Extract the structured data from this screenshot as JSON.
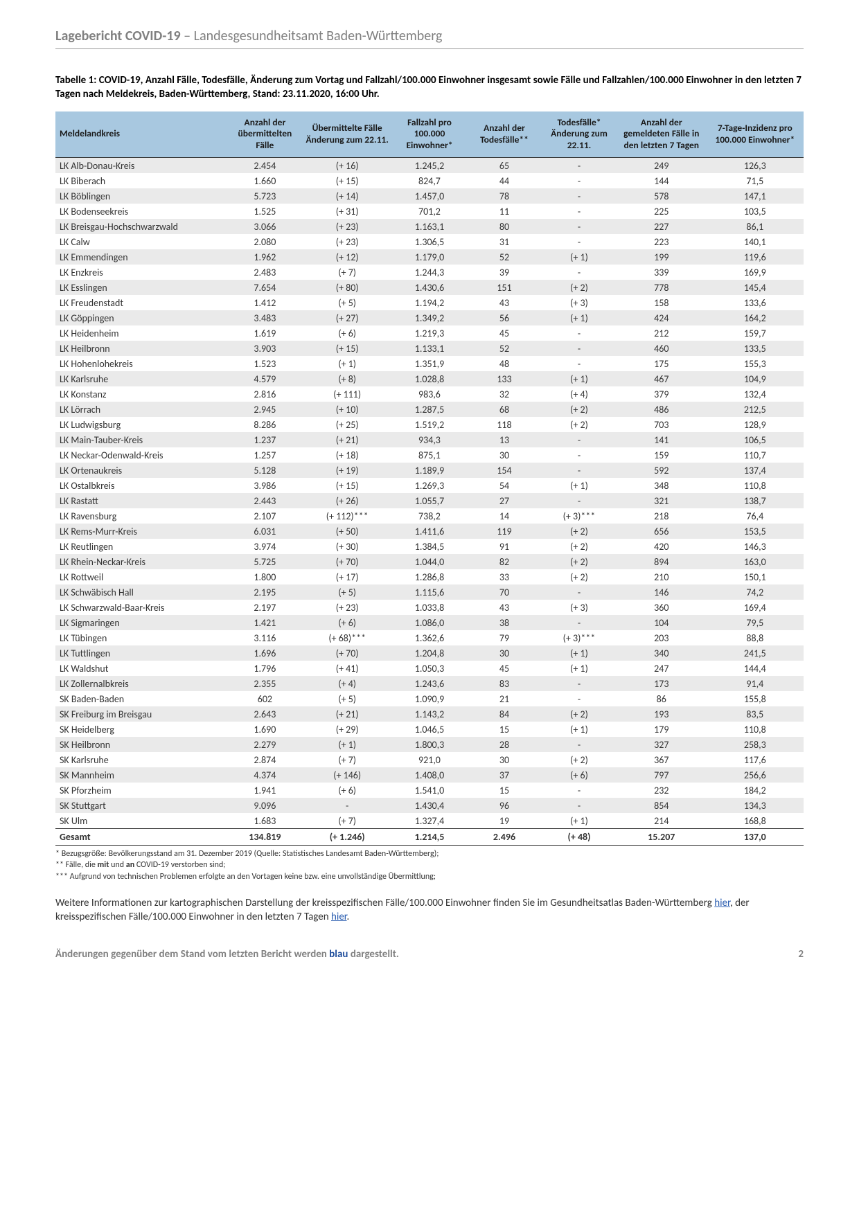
{
  "header": {
    "bold": "Lagebericht COVID-19",
    "sep": " – ",
    "rest": "Landesgesundheitsamt Baden-Württemberg"
  },
  "caption": "Tabelle 1: COVID-19, Anzahl Fälle, Todesfälle, Änderung zum Vortag und Fallzahl/100.000 Einwohner insgesamt sowie Fälle und Fallzahlen/100.000 Einwohner in den letzten 7 Tagen nach Meldekreis, Baden-Württemberg, Stand: 23.11.2020, 16:00 Uhr.",
  "cols": {
    "kreis": "Meldelandkreis",
    "faelle": "Anzahl der übermittelten Fälle",
    "aend": "Übermittelte Fälle Änderung zum 22.11.",
    "fz100k": "Fallzahl pro 100.000 Einwohner*",
    "tod": "Anzahl der Todesfälle**",
    "todaend": "Todesfälle* Änderung zum 22.11.",
    "d7": "Anzahl der gemeldeten Fälle in den letzten 7 Tagen",
    "inz": "7-Tage-Inzidenz pro 100.000 Einwohner*"
  },
  "table": {
    "type": "table",
    "header_bg": "#a8c8e0",
    "row_even_bg": "#eaeaea",
    "row_odd_bg": "#ffffff",
    "border_color": "#333333",
    "font_size": 14,
    "columns": [
      "kreis",
      "faelle",
      "aend",
      "fz100k",
      "tod",
      "todaend",
      "d7",
      "inz"
    ],
    "col_align": [
      "left",
      "center",
      "center",
      "center",
      "center",
      "center",
      "center",
      "center"
    ],
    "col_widths_pct": [
      23,
      10,
      12,
      10,
      10,
      10,
      12,
      13
    ]
  },
  "rows": [
    {
      "kreis": "LK Alb-Donau-Kreis",
      "faelle": "2.454",
      "aend": "(+ 16)",
      "fz100k": "1.245,2",
      "tod": "65",
      "todaend": "-",
      "d7": "249",
      "inz": "126,3"
    },
    {
      "kreis": "LK Biberach",
      "faelle": "1.660",
      "aend": "(+ 15)",
      "fz100k": "824,7",
      "tod": "44",
      "todaend": "-",
      "d7": "144",
      "inz": "71,5"
    },
    {
      "kreis": "LK Böblingen",
      "faelle": "5.723",
      "aend": "(+ 14)",
      "fz100k": "1.457,0",
      "tod": "78",
      "todaend": "-",
      "d7": "578",
      "inz": "147,1"
    },
    {
      "kreis": "LK Bodenseekreis",
      "faelle": "1.525",
      "aend": "(+ 31)",
      "fz100k": "701,2",
      "tod": "11",
      "todaend": "-",
      "d7": "225",
      "inz": "103,5"
    },
    {
      "kreis": "LK Breisgau-Hochschwarzwald",
      "faelle": "3.066",
      "aend": "(+ 23)",
      "fz100k": "1.163,1",
      "tod": "80",
      "todaend": "-",
      "d7": "227",
      "inz": "86,1"
    },
    {
      "kreis": "LK Calw",
      "faelle": "2.080",
      "aend": "(+ 23)",
      "fz100k": "1.306,5",
      "tod": "31",
      "todaend": "-",
      "d7": "223",
      "inz": "140,1"
    },
    {
      "kreis": "LK Emmendingen",
      "faelle": "1.962",
      "aend": "(+ 12)",
      "fz100k": "1.179,0",
      "tod": "52",
      "todaend": "(+ 1)",
      "d7": "199",
      "inz": "119,6"
    },
    {
      "kreis": "LK Enzkreis",
      "faelle": "2.483",
      "aend": "(+ 7)",
      "fz100k": "1.244,3",
      "tod": "39",
      "todaend": "-",
      "d7": "339",
      "inz": "169,9"
    },
    {
      "kreis": "LK Esslingen",
      "faelle": "7.654",
      "aend": "(+ 80)",
      "fz100k": "1.430,6",
      "tod": "151",
      "todaend": "(+ 2)",
      "d7": "778",
      "inz": "145,4"
    },
    {
      "kreis": "LK Freudenstadt",
      "faelle": "1.412",
      "aend": "(+ 5)",
      "fz100k": "1.194,2",
      "tod": "43",
      "todaend": "(+ 3)",
      "d7": "158",
      "inz": "133,6"
    },
    {
      "kreis": "LK Göppingen",
      "faelle": "3.483",
      "aend": "(+ 27)",
      "fz100k": "1.349,2",
      "tod": "56",
      "todaend": "(+ 1)",
      "d7": "424",
      "inz": "164,2"
    },
    {
      "kreis": "LK Heidenheim",
      "faelle": "1.619",
      "aend": "(+ 6)",
      "fz100k": "1.219,3",
      "tod": "45",
      "todaend": "-",
      "d7": "212",
      "inz": "159,7"
    },
    {
      "kreis": "LK Heilbronn",
      "faelle": "3.903",
      "aend": "(+ 15)",
      "fz100k": "1.133,1",
      "tod": "52",
      "todaend": "-",
      "d7": "460",
      "inz": "133,5"
    },
    {
      "kreis": "LK Hohenlohekreis",
      "faelle": "1.523",
      "aend": "(+ 1)",
      "fz100k": "1.351,9",
      "tod": "48",
      "todaend": "-",
      "d7": "175",
      "inz": "155,3"
    },
    {
      "kreis": "LK Karlsruhe",
      "faelle": "4.579",
      "aend": "(+ 8)",
      "fz100k": "1.028,8",
      "tod": "133",
      "todaend": "(+ 1)",
      "d7": "467",
      "inz": "104,9"
    },
    {
      "kreis": "LK Konstanz",
      "faelle": "2.816",
      "aend": "(+ 111)",
      "fz100k": "983,6",
      "tod": "32",
      "todaend": "(+ 4)",
      "d7": "379",
      "inz": "132,4"
    },
    {
      "kreis": "LK Lörrach",
      "faelle": "2.945",
      "aend": "(+ 10)",
      "fz100k": "1.287,5",
      "tod": "68",
      "todaend": "(+ 2)",
      "d7": "486",
      "inz": "212,5"
    },
    {
      "kreis": "LK Ludwigsburg",
      "faelle": "8.286",
      "aend": "(+ 25)",
      "fz100k": "1.519,2",
      "tod": "118",
      "todaend": "(+ 2)",
      "d7": "703",
      "inz": "128,9"
    },
    {
      "kreis": "LK Main-Tauber-Kreis",
      "faelle": "1.237",
      "aend": "(+ 21)",
      "fz100k": "934,3",
      "tod": "13",
      "todaend": "-",
      "d7": "141",
      "inz": "106,5"
    },
    {
      "kreis": "LK Neckar-Odenwald-Kreis",
      "faelle": "1.257",
      "aend": "(+ 18)",
      "fz100k": "875,1",
      "tod": "30",
      "todaend": "-",
      "d7": "159",
      "inz": "110,7"
    },
    {
      "kreis": "LK Ortenaukreis",
      "faelle": "5.128",
      "aend": "(+ 19)",
      "fz100k": "1.189,9",
      "tod": "154",
      "todaend": "-",
      "d7": "592",
      "inz": "137,4"
    },
    {
      "kreis": "LK Ostalbkreis",
      "faelle": "3.986",
      "aend": "(+ 15)",
      "fz100k": "1.269,3",
      "tod": "54",
      "todaend": "(+ 1)",
      "d7": "348",
      "inz": "110,8"
    },
    {
      "kreis": "LK Rastatt",
      "faelle": "2.443",
      "aend": "(+ 26)",
      "fz100k": "1.055,7",
      "tod": "27",
      "todaend": "-",
      "d7": "321",
      "inz": "138,7"
    },
    {
      "kreis": "LK Ravensburg",
      "faelle": "2.107",
      "aend": "(+ 112)***",
      "fz100k": "738,2",
      "tod": "14",
      "todaend": "(+ 3)***",
      "d7": "218",
      "inz": "76,4"
    },
    {
      "kreis": "LK Rems-Murr-Kreis",
      "faelle": "6.031",
      "aend": "(+ 50)",
      "fz100k": "1.411,6",
      "tod": "119",
      "todaend": "(+ 2)",
      "d7": "656",
      "inz": "153,5"
    },
    {
      "kreis": "LK Reutlingen",
      "faelle": "3.974",
      "aend": "(+ 30)",
      "fz100k": "1.384,5",
      "tod": "91",
      "todaend": "(+ 2)",
      "d7": "420",
      "inz": "146,3"
    },
    {
      "kreis": "LK Rhein-Neckar-Kreis",
      "faelle": "5.725",
      "aend": "(+ 70)",
      "fz100k": "1.044,0",
      "tod": "82",
      "todaend": "(+ 2)",
      "d7": "894",
      "inz": "163,0"
    },
    {
      "kreis": "LK Rottweil",
      "faelle": "1.800",
      "aend": "(+ 17)",
      "fz100k": "1.286,8",
      "tod": "33",
      "todaend": "(+ 2)",
      "d7": "210",
      "inz": "150,1"
    },
    {
      "kreis": "LK Schwäbisch Hall",
      "faelle": "2.195",
      "aend": "(+ 5)",
      "fz100k": "1.115,6",
      "tod": "70",
      "todaend": "-",
      "d7": "146",
      "inz": "74,2"
    },
    {
      "kreis": "LK Schwarzwald-Baar-Kreis",
      "faelle": "2.197",
      "aend": "(+ 23)",
      "fz100k": "1.033,8",
      "tod": "43",
      "todaend": "(+ 3)",
      "d7": "360",
      "inz": "169,4"
    },
    {
      "kreis": "LK Sigmaringen",
      "faelle": "1.421",
      "aend": "(+ 6)",
      "fz100k": "1.086,0",
      "tod": "38",
      "todaend": "-",
      "d7": "104",
      "inz": "79,5"
    },
    {
      "kreis": "LK Tübingen",
      "faelle": "3.116",
      "aend": "(+ 68)***",
      "fz100k": "1.362,6",
      "tod": "79",
      "todaend": "(+ 3)***",
      "d7": "203",
      "inz": "88,8"
    },
    {
      "kreis": "LK Tuttlingen",
      "faelle": "1.696",
      "aend": "(+ 70)",
      "fz100k": "1.204,8",
      "tod": "30",
      "todaend": "(+ 1)",
      "d7": "340",
      "inz": "241,5"
    },
    {
      "kreis": "LK Waldshut",
      "faelle": "1.796",
      "aend": "(+ 41)",
      "fz100k": "1.050,3",
      "tod": "45",
      "todaend": "(+ 1)",
      "d7": "247",
      "inz": "144,4"
    },
    {
      "kreis": "LK Zollernalbkreis",
      "faelle": "2.355",
      "aend": "(+ 4)",
      "fz100k": "1.243,6",
      "tod": "83",
      "todaend": "-",
      "d7": "173",
      "inz": "91,4"
    },
    {
      "kreis": "SK Baden-Baden",
      "faelle": "602",
      "aend": "(+ 5)",
      "fz100k": "1.090,9",
      "tod": "21",
      "todaend": "-",
      "d7": "86",
      "inz": "155,8"
    },
    {
      "kreis": "SK Freiburg im Breisgau",
      "faelle": "2.643",
      "aend": "(+ 21)",
      "fz100k": "1.143,2",
      "tod": "84",
      "todaend": "(+ 2)",
      "d7": "193",
      "inz": "83,5"
    },
    {
      "kreis": "SK Heidelberg",
      "faelle": "1.690",
      "aend": "(+ 29)",
      "fz100k": "1.046,5",
      "tod": "15",
      "todaend": "(+ 1)",
      "d7": "179",
      "inz": "110,8"
    },
    {
      "kreis": "SK Heilbronn",
      "faelle": "2.279",
      "aend": "(+ 1)",
      "fz100k": "1.800,3",
      "tod": "28",
      "todaend": "-",
      "d7": "327",
      "inz": "258,3"
    },
    {
      "kreis": "SK Karlsruhe",
      "faelle": "2.874",
      "aend": "(+ 7)",
      "fz100k": "921,0",
      "tod": "30",
      "todaend": "(+ 2)",
      "d7": "367",
      "inz": "117,6"
    },
    {
      "kreis": "SK Mannheim",
      "faelle": "4.374",
      "aend": "(+ 146)",
      "fz100k": "1.408,0",
      "tod": "37",
      "todaend": "(+ 6)",
      "d7": "797",
      "inz": "256,6"
    },
    {
      "kreis": "SK Pforzheim",
      "faelle": "1.941",
      "aend": "(+ 6)",
      "fz100k": "1.541,0",
      "tod": "15",
      "todaend": "-",
      "d7": "232",
      "inz": "184,2"
    },
    {
      "kreis": "SK Stuttgart",
      "faelle": "9.096",
      "aend": "-",
      "fz100k": "1.430,4",
      "tod": "96",
      "todaend": "-",
      "d7": "854",
      "inz": "134,3"
    },
    {
      "kreis": "SK Ulm",
      "faelle": "1.683",
      "aend": "(+ 7)",
      "fz100k": "1.327,4",
      "tod": "19",
      "todaend": "(+ 1)",
      "d7": "214",
      "inz": "168,8"
    }
  ],
  "total": {
    "kreis": "Gesamt",
    "faelle": "134.819",
    "aend": "(+ 1.246)",
    "fz100k": "1.214,5",
    "tod": "2.496",
    "todaend": "(+ 48)",
    "d7": "15.207",
    "inz": "137,0"
  },
  "footnotes": {
    "f1": "* Bezugsgröße: Bevölkerungsstand am 31. Dezember 2019 (Quelle: Statistisches Landesamt Baden-Württemberg);",
    "f2": "** Fälle, die mit und an COVID-19 verstorben sind;",
    "f3": "*** Aufgrund von technischen Problemen erfolgte an den Vortagen keine bzw. eine unvollständige Übermittlung;"
  },
  "further": {
    "pre": "Weitere Informationen zur kartographischen Darstellung der kreisspezifischen Fälle/100.000 Einwohner finden Sie im Gesundheitsatlas Baden-Württemberg ",
    "link1": "hier",
    "mid": ", der kreisspezifischen Fälle/100.000 Einwohner in den letzten 7 Tagen ",
    "link2": "hier",
    "post": "."
  },
  "footer": {
    "pre": "Änderungen gegenüber dem Stand vom letzten Bericht werden ",
    "blau": "blau",
    "post": " dargestellt.",
    "page": "2"
  }
}
